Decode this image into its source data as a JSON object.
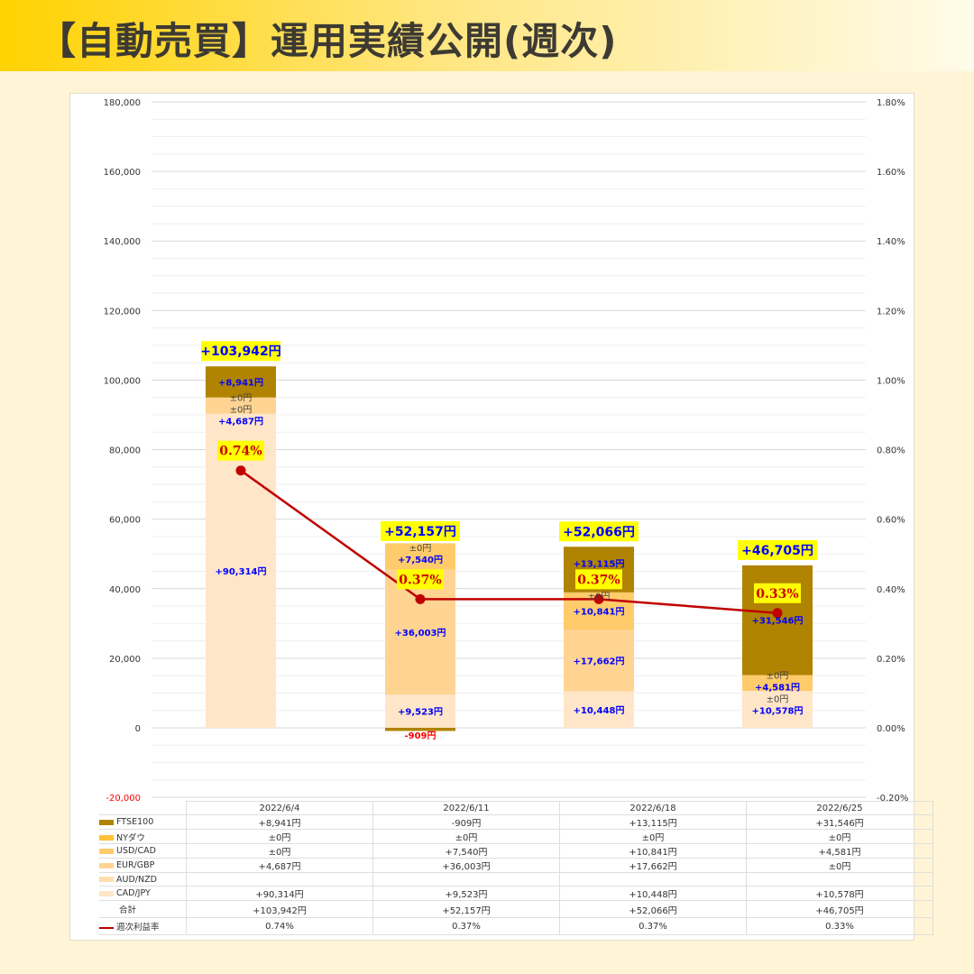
{
  "title": "【自動売買】運用実績公開(週次)",
  "colors": {
    "FTSE100": "#B08300",
    "NYダウ": "#FFC23A",
    "USD/CAD": "#FFCB6B",
    "EUR/GBP": "#FFD493",
    "AUD/NZD": "#FFDFAE",
    "CAD/JPY": "#FFE6C8",
    "rate_line": "#C00000",
    "label_box": "#FFFF00",
    "positive_label": "#0000FF",
    "negative_label": "#FF0000"
  },
  "chart_data": {
    "type": "bar",
    "stacked": true,
    "categories": [
      "2022/6/4",
      "2022/6/11",
      "2022/6/18",
      "2022/6/25"
    ],
    "series": [
      {
        "name": "CAD/JPY",
        "values": [
          90314,
          9523,
          10448,
          10578
        ],
        "labels": [
          "+90,314円",
          "+9,523円",
          "+10,448円",
          "+10,578円"
        ]
      },
      {
        "name": "AUD/NZD",
        "values": [
          null,
          null,
          null,
          null
        ],
        "labels": [
          "",
          "",
          "",
          ""
        ]
      },
      {
        "name": "EUR/GBP",
        "values": [
          4687,
          36003,
          17662,
          0
        ],
        "labels": [
          "+4,687円",
          "+36,003円",
          "+17,662円",
          "±0円"
        ]
      },
      {
        "name": "USD/CAD",
        "values": [
          0,
          7540,
          10841,
          4581
        ],
        "labels": [
          "±0円",
          "+7,540円",
          "+10,841円",
          "+4,581円"
        ]
      },
      {
        "name": "NYダウ",
        "values": [
          0,
          0,
          0,
          0
        ],
        "labels": [
          "±0円",
          "±0円",
          "±0円",
          "±0円"
        ]
      },
      {
        "name": "FTSE100",
        "values": [
          8941,
          -909,
          13115,
          31546
        ],
        "labels": [
          "+8,941円",
          "-909円",
          "+13,115円",
          "+31,546円"
        ]
      }
    ],
    "totals": {
      "name": "合計",
      "values": [
        103942,
        52157,
        52066,
        46705
      ],
      "labels": [
        "+103,942円",
        "+52,157円",
        "+52,066円",
        "+46,705円"
      ]
    },
    "line": {
      "name": "週次利益率",
      "type": "line",
      "axis": "right",
      "values": [
        0.74,
        0.37,
        0.37,
        0.33
      ],
      "labels": [
        "0.74%",
        "0.37%",
        "0.37%",
        "0.33%"
      ],
      "table_labels": [
        "0.74%",
        "0.37%",
        "0.37%",
        "0.33%"
      ]
    },
    "ylim": [
      -20000,
      180000
    ],
    "yticks": [
      "-20,000",
      "0",
      "20,000",
      "40,000",
      "60,000",
      "80,000",
      "100,000",
      "120,000",
      "140,000",
      "160,000",
      "180,000"
    ],
    "y2lim": [
      -0.2,
      1.8
    ],
    "y2ticks": [
      "-0.20%",
      "0.00%",
      "0.20%",
      "0.40%",
      "0.60%",
      "0.80%",
      "1.00%",
      "1.20%",
      "1.40%",
      "1.60%",
      "1.80%"
    ],
    "grid": true,
    "legend": "data-table-below"
  }
}
